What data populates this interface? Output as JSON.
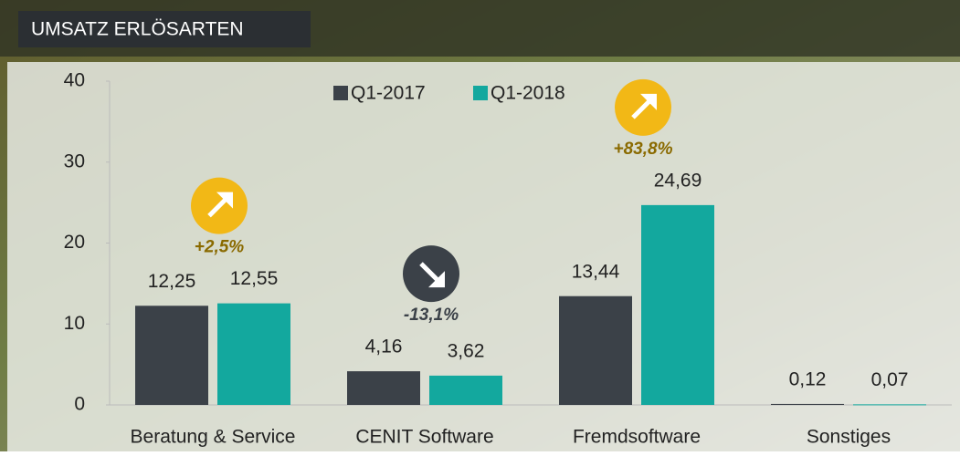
{
  "header": {
    "title": "UMSATZ ERLÖSARTEN"
  },
  "chart_data": {
    "type": "bar",
    "categories": [
      "Beratung & Service",
      "CENIT Software",
      "Fremdsoftware",
      "Sonstiges"
    ],
    "series": [
      {
        "name": "Q1-2017",
        "color": "#3b4148",
        "values": [
          12.25,
          4.16,
          13.44,
          0.12
        ],
        "value_labels": [
          "12,25",
          "4,16",
          "13,44",
          "0,12"
        ]
      },
      {
        "name": "Q1-2018",
        "color": "#13a89e",
        "values": [
          12.55,
          3.62,
          24.69,
          0.07
        ],
        "value_labels": [
          "12,55",
          "3,62",
          "24,69",
          "0,07"
        ]
      }
    ],
    "ylim": [
      0,
      40
    ],
    "yticks": [
      0,
      10,
      20,
      30,
      40
    ],
    "annotations": [
      {
        "text": "+2,5%",
        "trend": "up",
        "color": "#f2b816",
        "text_color": "#8a6a00"
      },
      {
        "text": "-13,1%",
        "trend": "down",
        "color": "#3b4148",
        "text_color": "#3b4148"
      },
      {
        "text": "+83,8%",
        "trend": "up",
        "color": "#f2b816",
        "text_color": "#8a6a00"
      }
    ]
  }
}
